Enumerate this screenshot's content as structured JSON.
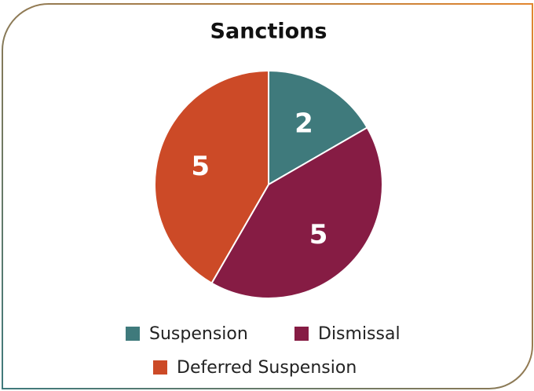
{
  "chart_data": {
    "type": "pie",
    "title": "Sanctions",
    "categories": [
      "Suspension",
      "Dismissal",
      "Deferred Suspension"
    ],
    "values": [
      2,
      5,
      5
    ],
    "colors": [
      "#3f7a7c",
      "#861c44",
      "#cc4a27"
    ]
  }
}
